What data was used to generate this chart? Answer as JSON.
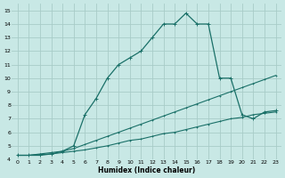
{
  "xlabel": "Humidex (Indice chaleur)",
  "bg_color": "#c8e8e5",
  "line_color": "#1a7068",
  "grid_color": "#a8ccc8",
  "xlim": [
    -0.5,
    23.5
  ],
  "ylim": [
    4,
    15.5
  ],
  "xticks": [
    0,
    1,
    2,
    3,
    4,
    5,
    6,
    7,
    8,
    9,
    10,
    11,
    12,
    13,
    14,
    15,
    16,
    17,
    18,
    19,
    20,
    21,
    22,
    23
  ],
  "yticks": [
    4,
    5,
    6,
    7,
    8,
    9,
    10,
    11,
    12,
    13,
    14,
    15
  ],
  "line1_x": [
    0,
    1,
    2,
    3,
    4,
    5,
    6,
    7,
    8,
    9,
    10,
    11,
    12,
    13,
    14,
    15,
    16,
    17,
    18,
    19,
    20,
    21,
    22,
    23
  ],
  "line1_y": [
    4.3,
    4.3,
    4.3,
    4.4,
    4.6,
    5.0,
    7.3,
    8.5,
    10.0,
    11.0,
    11.5,
    12.0,
    13.0,
    14.0,
    14.0,
    14.8,
    14.0,
    14.0,
    10.0,
    10.0,
    7.3,
    7.0,
    7.5,
    7.6
  ],
  "line2_x": [
    0,
    1,
    2,
    3,
    4,
    5,
    6,
    7,
    8,
    9,
    10,
    11,
    12,
    13,
    14,
    15,
    16,
    17,
    18,
    19,
    20,
    21,
    22,
    23
  ],
  "line2_y": [
    4.3,
    4.3,
    4.4,
    4.5,
    4.6,
    4.8,
    5.1,
    5.4,
    5.7,
    6.0,
    6.3,
    6.6,
    6.9,
    7.2,
    7.5,
    7.8,
    8.1,
    8.4,
    8.7,
    9.0,
    9.3,
    9.6,
    9.9,
    10.2
  ],
  "line3_x": [
    0,
    1,
    2,
    3,
    4,
    5,
    6,
    7,
    8,
    9,
    10,
    11,
    12,
    13,
    14,
    15,
    16,
    17,
    18,
    19,
    20,
    21,
    22,
    23
  ],
  "line3_y": [
    4.3,
    4.3,
    4.35,
    4.4,
    4.5,
    4.6,
    4.7,
    4.85,
    5.0,
    5.2,
    5.4,
    5.5,
    5.7,
    5.9,
    6.0,
    6.2,
    6.4,
    6.6,
    6.8,
    7.0,
    7.1,
    7.3,
    7.4,
    7.5
  ]
}
